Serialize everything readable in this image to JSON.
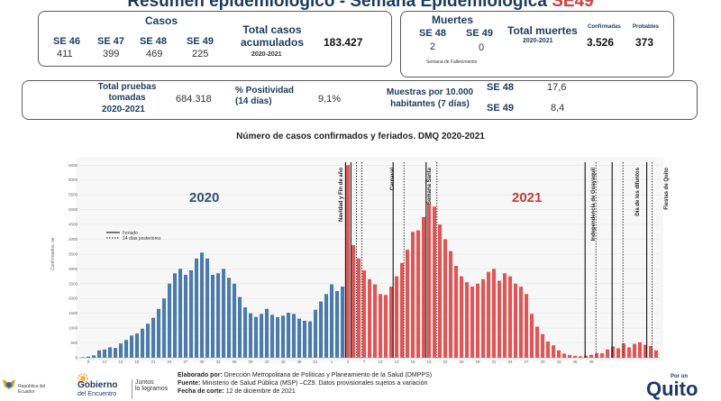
{
  "header": {
    "title_main": "Resumen epidemiológico - Semana Epidemiológica",
    "title_accent": "SE49"
  },
  "cases_box": {
    "heading": "Casos",
    "weeks": [
      {
        "label": "SE 46",
        "value": "411"
      },
      {
        "label": "SE 47",
        "value": "399"
      },
      {
        "label": "SE 48",
        "value": "469"
      },
      {
        "label": "SE 49",
        "value": "225"
      }
    ],
    "total_label": "Total casos acumulados",
    "total_period": "2020-2021",
    "total_value": "183.427"
  },
  "deaths_box": {
    "heading": "Muertes",
    "weeks": [
      {
        "label": "SE 48",
        "value": "2"
      },
      {
        "label": "SE 49",
        "value": "0"
      }
    ],
    "week_note": "Semana de Fallecimiento",
    "total_label": "Total muertes",
    "total_period": "2020-2021",
    "confirmed_label": "Confirmadas",
    "confirmed_value": "3.526",
    "probable_label": "Probables",
    "probable_value": "373"
  },
  "tests_box": {
    "tests_label": "Total pruebas tomadas",
    "tests_period": "2020-2021",
    "tests_value": "684.318",
    "positivity_label": "% Positividad (14 días)",
    "positivity_value": "9,1%",
    "samples_label": "Muestras por 10.000 habitantes (7 días)",
    "samples": [
      {
        "week": "SE 48",
        "value": "17,6"
      },
      {
        "week": "SE 49",
        "value": "8,4"
      }
    ]
  },
  "chart_data": {
    "type": "bar",
    "title": "Número de casos confirmados y feriados. DMQ 2020-2021",
    "ylabel": "Confirmados, se",
    "ylim": [
      0,
      6600
    ],
    "yticks": [
      "0",
      "500",
      "1000",
      "1500",
      "2000",
      "2500",
      "3000",
      "3500",
      "4000",
      "4500",
      "5000",
      "5500",
      "6000",
      "6500"
    ],
    "year_labels": [
      "2020",
      "2021"
    ],
    "legend": [
      "Feriado",
      "14 días posteriores"
    ],
    "colors": {
      "2020": "#4a7bab",
      "2021": "#e05555",
      "title2020": "#2f4f74",
      "title2021": "#c83a3a"
    },
    "series": [
      {
        "name": "2020",
        "values": [
          20,
          40,
          80,
          250,
          280,
          350,
          330,
          480,
          600,
          750,
          820,
          980,
          1150,
          1350,
          1650,
          2000,
          2500,
          2850,
          3000,
          2800,
          2950,
          3350,
          3550,
          3350,
          2800,
          2850,
          3000,
          2700,
          2500,
          2050,
          1700,
          1500,
          1380,
          1480,
          1650,
          1450,
          1370,
          1420,
          1520,
          1480,
          1320,
          1250,
          1230,
          1620,
          1900,
          2150,
          2480,
          2250,
          2400
        ]
      },
      {
        "name": "2021",
        "values": [
          6500,
          3800,
          3350,
          2950,
          2650,
          2480,
          2150,
          2120,
          2400,
          2750,
          3200,
          3650,
          4250,
          4300,
          4750,
          5200,
          5100,
          4500,
          4000,
          3600,
          3100,
          2750,
          2550,
          2400,
          2500,
          2650,
          2900,
          3000,
          2600,
          2850,
          2750,
          2500,
          2400,
          2150,
          1480,
          1050,
          800,
          550,
          420,
          250,
          140,
          90,
          60,
          50,
          70,
          100,
          150,
          150,
          280,
          380,
          320,
          480,
          350,
          470,
          520,
          440,
          400,
          250
        ]
      }
    ],
    "xticks": [
      "9",
      "12",
      "15",
      "18",
      "21",
      "24",
      "27",
      "30",
      "33",
      "36",
      "39",
      "42",
      "45",
      "48",
      "51",
      "1",
      "4",
      "7",
      "10",
      "13",
      "16",
      "19",
      "22",
      "25",
      "28",
      "31",
      "34",
      "37",
      "40",
      "43",
      "46",
      "49"
    ],
    "annotations": [
      "Navidad y Fin de año",
      "Carnaval",
      "Semana Santa",
      "Independencia de Guayaquil",
      "Día de los difuntos",
      "Fiestas de Quito"
    ]
  },
  "footer": {
    "l1_bold": "Elaborado por:",
    "l1": "Dirección Metropolitana de Políticas y Planeamiento de la Salud (DMPPS)",
    "l2_bold": "Fuente:",
    "l2": "Ministerio de Salud Pública (MSP) –CZ9. Datos provisionales sujetos a variación",
    "l3_bold": "Fecha de corte:",
    "l3": "12 de diciembre de 2021",
    "republica": "República del Ecuador",
    "gobierno": "Gobierno",
    "gobierno_sub": "del Encuentro",
    "juntos1": "Juntos",
    "juntos2": "lo logramos",
    "por_un": "Por un",
    "quito": "Quito"
  }
}
